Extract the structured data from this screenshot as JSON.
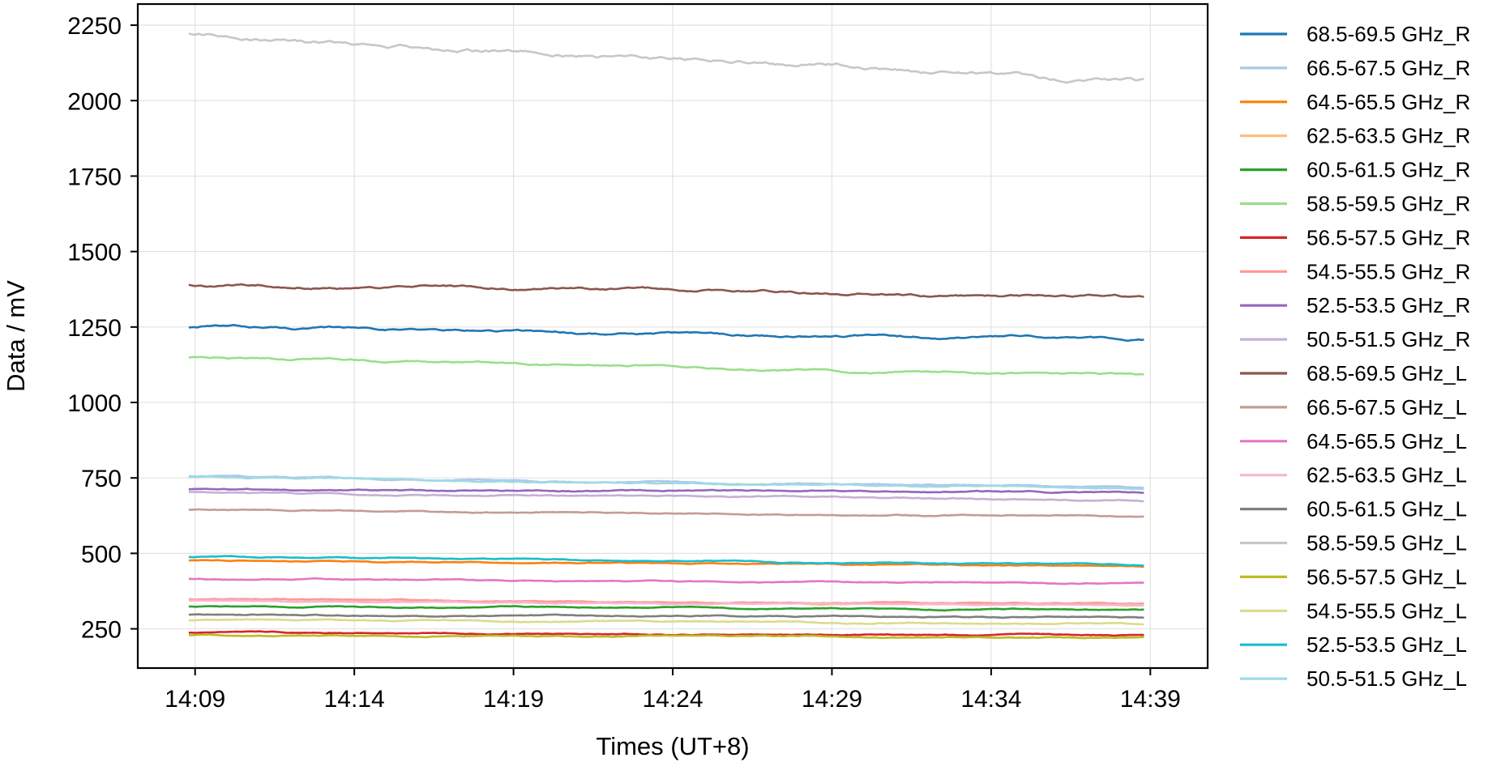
{
  "chart_data": {
    "type": "line",
    "title": "",
    "xlabel": "Times (UT+8)",
    "ylabel": "Data / mV",
    "x_ticks": [
      "14:09",
      "14:14",
      "14:19",
      "14:24",
      "14:29",
      "14:34",
      "14:39"
    ],
    "y_ticks": [
      250,
      500,
      750,
      1000,
      1250,
      1500,
      1750,
      2000,
      2250
    ],
    "xlim": [
      "14:07:12",
      "14:40:48"
    ],
    "ylim": [
      120,
      2320
    ],
    "x_start": "14:08:48",
    "x_end": "14:38:48",
    "grid": true,
    "legend_position": "outside-right",
    "series": [
      {
        "name": "68.5-69.5 GHz_R",
        "color": "#1f77b4",
        "start": 1250,
        "end": 1207
      },
      {
        "name": "66.5-67.5 GHz_R",
        "color": "#aec7e8",
        "start": 755,
        "end": 718
      },
      {
        "name": "64.5-65.5 GHz_R",
        "color": "#ff7f0e",
        "start": 476,
        "end": 458
      },
      {
        "name": "62.5-63.5 GHz_R",
        "color": "#ffbb78",
        "start": 345,
        "end": 330
      },
      {
        "name": "60.5-61.5 GHz_R",
        "color": "#2ca02c",
        "start": 325,
        "end": 313
      },
      {
        "name": "58.5-59.5 GHz_R",
        "color": "#98df8a",
        "start": 1150,
        "end": 1088
      },
      {
        "name": "56.5-57.5 GHz_R",
        "color": "#d62728",
        "start": 238,
        "end": 228
      },
      {
        "name": "54.5-55.5 GHz_R",
        "color": "#ff9896",
        "start": 348,
        "end": 333
      },
      {
        "name": "52.5-53.5 GHz_R",
        "color": "#9467bd",
        "start": 710,
        "end": 703
      },
      {
        "name": "50.5-51.5 GHz_R",
        "color": "#c5b0d5",
        "start": 703,
        "end": 675
      },
      {
        "name": "68.5-69.5 GHz_L",
        "color": "#8c564b",
        "start": 1392,
        "end": 1352
      },
      {
        "name": "66.5-67.5 GHz_L",
        "color": "#c49c94",
        "start": 645,
        "end": 622
      },
      {
        "name": "64.5-65.5 GHz_L",
        "color": "#e377c2",
        "start": 415,
        "end": 400
      },
      {
        "name": "62.5-63.5 GHz_L",
        "color": "#f7b6d2",
        "start": 343,
        "end": 328
      },
      {
        "name": "60.5-61.5 GHz_L",
        "color": "#7f7f7f",
        "start": 296,
        "end": 288
      },
      {
        "name": "58.5-59.5 GHz_L",
        "color": "#c7c7c7",
        "start": 2215,
        "end": 2063
      },
      {
        "name": "56.5-57.5 GHz_L",
        "color": "#bcbd22",
        "start": 230,
        "end": 220
      },
      {
        "name": "54.5-55.5 GHz_L",
        "color": "#dbdb8d",
        "start": 280,
        "end": 266
      },
      {
        "name": "52.5-53.5 GHz_L",
        "color": "#17becf",
        "start": 490,
        "end": 462
      },
      {
        "name": "50.5-51.5 GHz_L",
        "color": "#9edae5",
        "start": 752,
        "end": 715
      }
    ]
  }
}
